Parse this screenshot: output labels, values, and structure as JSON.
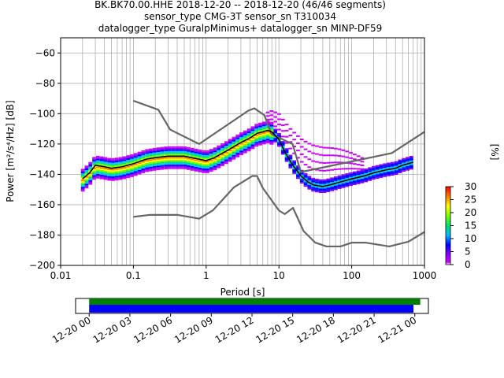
{
  "chart_data": {
    "type": "heatmap",
    "title": {
      "line1": "BK.BK70.00.HHE   2018-12-20 -- 2018-12-20  (46/46 segments)",
      "line2": "sensor_type CMG-3T sensor_sn T310034",
      "line3": "datalogger_type GuralpMinimus+ datalogger_sn MINP-DF59"
    },
    "xlabel": "Period [s]",
    "ylabel": "Power [m²/s⁴/Hz] [dB]",
    "xscale": "log",
    "xlim": [
      0.01,
      1000
    ],
    "ylim": [
      -200,
      -50
    ],
    "x_ticks": [
      {
        "v": 0.01,
        "label": "0.01"
      },
      {
        "v": 0.1,
        "label": "0.1"
      },
      {
        "v": 1,
        "label": "1"
      },
      {
        "v": 10,
        "label": "10"
      },
      {
        "v": 100,
        "label": "100"
      },
      {
        "v": 1000,
        "label": "1000"
      }
    ],
    "y_ticks": [
      {
        "v": -60,
        "label": "−60"
      },
      {
        "v": -80,
        "label": "−80"
      },
      {
        "v": -100,
        "label": "−100"
      },
      {
        "v": -120,
        "label": "−120"
      },
      {
        "v": -140,
        "label": "−140"
      },
      {
        "v": -160,
        "label": "−160"
      },
      {
        "v": -180,
        "label": "−180"
      },
      {
        "v": -200,
        "label": "−200"
      }
    ],
    "grid": true,
    "noise_models": {
      "nhnm": {
        "x": [
          0.1,
          0.22,
          0.32,
          0.8,
          3.8,
          4.6,
          6.3,
          7.9,
          15.4,
          20,
          354.8,
          1000
        ],
        "y": [
          -91.5,
          -97.4,
          -110.5,
          -120,
          -98,
          -96.5,
          -101,
          -113.5,
          -120,
          -138.5,
          -126,
          -112
        ]
      },
      "nlnm": {
        "x": [
          0.1,
          0.17,
          0.4,
          0.8,
          1.24,
          2.4,
          4.3,
          5,
          6,
          10,
          12,
          15.6,
          21.9,
          31.6,
          45,
          70,
          101,
          154,
          328,
          600,
          1000
        ],
        "y": [
          -168,
          -166.7,
          -166.7,
          -169.2,
          -163.7,
          -148.6,
          -141.1,
          -141.1,
          -149,
          -163.8,
          -166.2,
          -162.1,
          -177.5,
          -185,
          -187.5,
          -187.5,
          -185,
          -185,
          -187.5,
          -184.4,
          -178
        ]
      }
    },
    "mean_curve": {
      "x": [
        0.02,
        0.025,
        0.03,
        0.04,
        0.05,
        0.07,
        0.1,
        0.15,
        0.2,
        0.3,
        0.5,
        0.8,
        1.0,
        1.3,
        2,
        3,
        4,
        5,
        6,
        7,
        8,
        10,
        12,
        15,
        20,
        25,
        30,
        40,
        50,
        70,
        100,
        150,
        200,
        300,
        400,
        500,
        700
      ],
      "y": [
        -143,
        -139,
        -134,
        -135,
        -136,
        -135,
        -133,
        -130,
        -129,
        -128,
        -128,
        -130,
        -131,
        -129,
        -124,
        -119,
        -116,
        -113,
        -112,
        -111,
        -112,
        -117,
        -125,
        -133,
        -141,
        -145,
        -147,
        -148,
        -147,
        -145,
        -143,
        -141,
        -139,
        -137,
        -136,
        -134,
        -132
      ]
    },
    "colorbar": {
      "label": "[%]",
      "min": 0,
      "max": 30,
      "ticks": [
        {
          "v": 0,
          "label": "0"
        },
        {
          "v": 5,
          "label": "5"
        },
        {
          "v": 10,
          "label": "10"
        },
        {
          "v": 15,
          "label": "15"
        },
        {
          "v": 20,
          "label": "20"
        },
        {
          "v": 25,
          "label": "25"
        },
        {
          "v": 30,
          "label": "30"
        }
      ]
    },
    "timeline": {
      "range_hours": [
        -1,
        25
      ],
      "ticks": [
        {
          "v": 0,
          "label": "12-20 00"
        },
        {
          "v": 3,
          "label": "12-20 03"
        },
        {
          "v": 6,
          "label": "12-20 06"
        },
        {
          "v": 9,
          "label": "12-20 09"
        },
        {
          "v": 12,
          "label": "12-20 12"
        },
        {
          "v": 15,
          "label": "12-20 15"
        },
        {
          "v": 18,
          "label": "12-20 18"
        },
        {
          "v": 21,
          "label": "12-20 21"
        },
        {
          "v": 24,
          "label": "12-21 00"
        }
      ],
      "data_coverage_hours": [
        0,
        24.4
      ],
      "psd_coverage_hours": [
        0,
        23.9
      ]
    },
    "colors": {
      "nhnm": "#666666",
      "nlnm": "#666666",
      "mean": "#000000",
      "data_bar": "#008000",
      "psd_bar": "#0000ff"
    }
  }
}
